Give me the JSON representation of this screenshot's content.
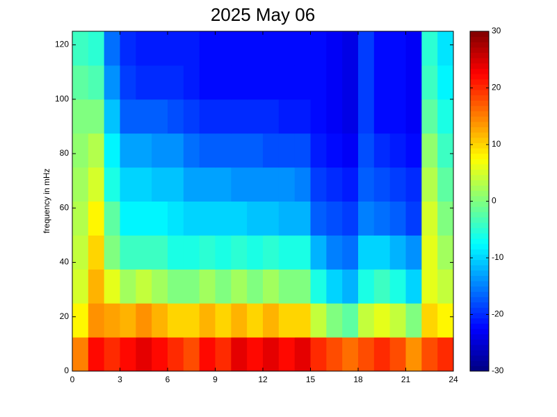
{
  "chart_data": {
    "type": "heatmap",
    "title": "2025 May 06",
    "ylabel": "frequency in mHz",
    "x": [
      0.5,
      1.5,
      2.5,
      3.5,
      4.5,
      5.5,
      6.5,
      7.5,
      8.5,
      9.5,
      10.5,
      11.5,
      12.5,
      13.5,
      14.5,
      15.5,
      16.5,
      17.5,
      18.5,
      19.5,
      20.5,
      21.5,
      22.5,
      23.5
    ],
    "y": [
      6.25,
      18.75,
      31.25,
      43.75,
      56.25,
      68.75,
      81.25,
      93.75,
      106.25,
      118.75
    ],
    "values": [
      [
        15,
        22,
        20,
        22,
        24,
        22,
        20,
        18,
        22,
        20,
        24,
        22,
        24,
        22,
        24,
        20,
        18,
        16,
        18,
        20,
        18,
        14,
        18,
        20
      ],
      [
        8,
        14,
        13,
        12,
        14,
        12,
        10,
        10,
        12,
        10,
        12,
        10,
        12,
        10,
        10,
        4,
        0,
        -2,
        4,
        6,
        4,
        0,
        10,
        8
      ],
      [
        5,
        12,
        6,
        2,
        4,
        2,
        0,
        0,
        2,
        0,
        2,
        0,
        2,
        0,
        0,
        -6,
        -10,
        -12,
        -6,
        -4,
        -6,
        -10,
        6,
        4
      ],
      [
        4,
        10,
        0,
        -4,
        -4,
        -4,
        -6,
        -6,
        -5,
        -6,
        -5,
        -6,
        -5,
        -6,
        -6,
        -12,
        -15,
        -16,
        -10,
        -10,
        -12,
        -14,
        6,
        2
      ],
      [
        3,
        8,
        -2,
        -8,
        -8,
        -8,
        -9,
        -10,
        -10,
        -10,
        -10,
        -11,
        -11,
        -12,
        -12,
        -17,
        -18,
        -19,
        -15,
        -16,
        -17,
        -19,
        5,
        0
      ],
      [
        2,
        5,
        -6,
        -10,
        -10,
        -11,
        -11,
        -13,
        -13,
        -13,
        -14,
        -14,
        -14,
        -14,
        -15,
        -19,
        -20,
        -21,
        -17,
        -18,
        -19,
        -20,
        3,
        -2
      ],
      [
        1,
        3,
        -8,
        -13,
        -13,
        -14,
        -14,
        -16,
        -17,
        -17,
        -17,
        -17,
        -18,
        -18,
        -18,
        -21,
        -22,
        -23,
        -18,
        -20,
        -21,
        -22,
        1,
        -4
      ],
      [
        0,
        0,
        -11,
        -17,
        -17,
        -17,
        -18,
        -19,
        -20,
        -20,
        -20,
        -20,
        -20,
        -21,
        -21,
        -22,
        -23,
        -24,
        -19,
        -22,
        -22,
        -23,
        -2,
        -6
      ],
      [
        -2,
        -3,
        -14,
        -19,
        -20,
        -20,
        -20,
        -21,
        -22,
        -22,
        -22,
        -22,
        -22,
        -22,
        -22,
        -22,
        -23,
        -24,
        -19,
        -22,
        -22,
        -23,
        -4,
        -8
      ],
      [
        -4,
        -5,
        -16,
        -20,
        -21,
        -21,
        -21,
        -21,
        -22,
        -22,
        -22,
        -22,
        -22,
        -22,
        -22,
        -22,
        -23,
        -24,
        -19,
        -22,
        -22,
        -23,
        -5,
        -9
      ]
    ],
    "xlim": [
      0,
      24
    ],
    "xticks": [
      0,
      3,
      6,
      9,
      12,
      15,
      18,
      21,
      24
    ],
    "ylim": [
      0,
      125
    ],
    "yticks": [
      0,
      20,
      40,
      60,
      80,
      100,
      120
    ],
    "clim": [
      -30,
      30
    ],
    "cticks": [
      -30,
      -20,
      -10,
      0,
      10,
      20,
      30
    ],
    "colormap": "jet"
  }
}
